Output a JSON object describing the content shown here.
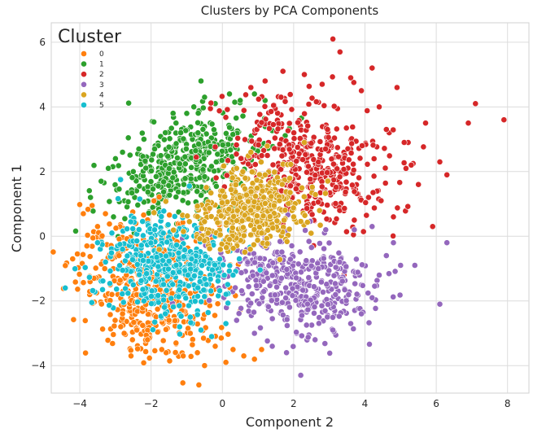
{
  "chart_data": {
    "type": "scatter",
    "title": "Clusters by PCA Components",
    "xlabel": "Component 2",
    "ylabel": "Component 1",
    "xlim": [
      -4.8,
      8.6
    ],
    "ylim": [
      -4.85,
      6.6
    ],
    "xticks": [
      -4,
      -2,
      0,
      2,
      4,
      6,
      8
    ],
    "yticks": [
      -4,
      -2,
      0,
      2,
      4,
      6
    ],
    "grid": true,
    "legend": {
      "title": "Cluster",
      "placement": "top-left"
    },
    "series": [
      {
        "name": "0",
        "color": "#ff7f0e",
        "centroid": [
          -2.1,
          -1.6
        ],
        "spread": [
          1.0,
          1.1
        ],
        "rho": -0.25,
        "points": [
          [
            -4.2,
            -0.7
          ],
          [
            -3.9,
            0.7
          ],
          [
            -3.8,
            -0.3
          ],
          [
            -3.6,
            -1.3
          ],
          [
            -3.5,
            0.3
          ],
          [
            -3.3,
            -1.0
          ],
          [
            -3.1,
            -1.8
          ],
          [
            -2.9,
            -0.6
          ],
          [
            -2.8,
            -2.4
          ],
          [
            -2.6,
            -1.4
          ],
          [
            -2.4,
            -2.9
          ],
          [
            -2.3,
            -0.5
          ],
          [
            -2.1,
            -3.2
          ],
          [
            -1.9,
            -2.0
          ],
          [
            -1.7,
            -3.5
          ],
          [
            -1.5,
            -2.6
          ],
          [
            -1.3,
            -3.3
          ],
          [
            -1.1,
            -3.7
          ],
          [
            -0.9,
            -3.0
          ],
          [
            -0.7,
            -3.6
          ],
          [
            -0.5,
            -4.0
          ],
          [
            -0.2,
            -3.4
          ],
          [
            0.1,
            -3.9
          ],
          [
            0.3,
            -3.5
          ],
          [
            0.6,
            -3.7
          ],
          [
            0.9,
            -3.8
          ],
          [
            1.1,
            -3.5
          ]
        ]
      },
      {
        "name": "1",
        "color": "#2ca02c",
        "centroid": [
          -1.0,
          2.2
        ],
        "spread": [
          1.0,
          0.8
        ],
        "rho": 0.4,
        "points": [
          [
            -3.7,
            1.2
          ],
          [
            -3.4,
            1.7
          ],
          [
            -3.2,
            2.1
          ],
          [
            -3.0,
            2.4
          ],
          [
            -2.8,
            2.6
          ],
          [
            -2.5,
            2.0
          ],
          [
            -2.2,
            3.0
          ],
          [
            -1.9,
            2.7
          ],
          [
            -1.6,
            3.2
          ],
          [
            -1.3,
            3.5
          ],
          [
            -1.0,
            3.8
          ],
          [
            -0.8,
            4.0
          ],
          [
            -0.5,
            4.3
          ],
          [
            -0.2,
            4.1
          ],
          [
            0.2,
            4.4
          ],
          [
            0.5,
            4.2
          ],
          [
            0.9,
            4.4
          ],
          [
            1.2,
            4.2
          ],
          [
            -0.6,
            4.8
          ]
        ]
      },
      {
        "name": "2",
        "color": "#d62728",
        "centroid": [
          2.4,
          2.3
        ],
        "spread": [
          1.1,
          1.0
        ],
        "rho": -0.3,
        "points": [
          [
            0.8,
            4.6
          ],
          [
            1.2,
            4.8
          ],
          [
            1.7,
            5.1
          ],
          [
            2.3,
            5.0
          ],
          [
            2.8,
            4.7
          ],
          [
            3.1,
            6.1
          ],
          [
            3.3,
            5.7
          ],
          [
            3.6,
            4.9
          ],
          [
            3.9,
            4.5
          ],
          [
            4.2,
            5.2
          ],
          [
            4.4,
            4.0
          ],
          [
            4.6,
            3.3
          ],
          [
            4.9,
            4.6
          ],
          [
            5.1,
            2.9
          ],
          [
            5.3,
            2.2
          ],
          [
            5.5,
            1.6
          ],
          [
            5.7,
            3.5
          ],
          [
            5.9,
            0.3
          ],
          [
            6.1,
            2.3
          ],
          [
            6.3,
            1.9
          ],
          [
            6.9,
            3.5
          ],
          [
            7.1,
            4.1
          ],
          [
            7.9,
            3.6
          ],
          [
            4.8,
            0.6
          ],
          [
            4.1,
            1.2
          ],
          [
            3.7,
            0.5
          ]
        ]
      },
      {
        "name": "3",
        "color": "#9467bd",
        "centroid": [
          2.1,
          -1.4
        ],
        "spread": [
          1.1,
          0.8
        ],
        "rho": -0.3,
        "points": [
          [
            -0.1,
            -1.6
          ],
          [
            0.4,
            -2.6
          ],
          [
            0.9,
            -3.0
          ],
          [
            1.4,
            -3.4
          ],
          [
            1.8,
            -3.6
          ],
          [
            2.2,
            -4.3
          ],
          [
            2.6,
            -3.2
          ],
          [
            3.1,
            -2.9
          ],
          [
            3.6,
            -2.7
          ],
          [
            3.9,
            -2.4
          ],
          [
            4.2,
            -1.9
          ],
          [
            4.4,
            -1.2
          ],
          [
            4.6,
            -0.6
          ],
          [
            4.8,
            -0.2
          ],
          [
            5.0,
            -0.9
          ],
          [
            5.4,
            -0.9
          ],
          [
            6.1,
            -2.1
          ],
          [
            6.3,
            -0.2
          ],
          [
            4.2,
            0.3
          ],
          [
            3.7,
            0.2
          ],
          [
            2.9,
            0.2
          ]
        ]
      },
      {
        "name": "4",
        "color": "#daa520",
        "centroid": [
          0.8,
          0.8
        ],
        "spread": [
          0.8,
          0.6
        ],
        "rho": 0.2,
        "points": [
          [
            -0.4,
            0.1
          ],
          [
            0.0,
            1.4
          ],
          [
            0.4,
            2.1
          ],
          [
            0.8,
            2.6
          ],
          [
            1.2,
            1.9
          ],
          [
            1.6,
            1.1
          ],
          [
            2.0,
            0.6
          ],
          [
            2.3,
            2.9
          ],
          [
            1.1,
            0.1
          ],
          [
            0.2,
            -0.1
          ]
        ]
      },
      {
        "name": "5",
        "color": "#17becf",
        "centroid": [
          -1.5,
          -0.9
        ],
        "spread": [
          0.9,
          0.75
        ],
        "rho": -0.1,
        "points": [
          [
            -3.5,
            -0.2
          ],
          [
            -3.1,
            0.1
          ],
          [
            -2.8,
            -0.4
          ],
          [
            -2.5,
            -1.5
          ],
          [
            -2.2,
            -2.0
          ],
          [
            -1.9,
            0.2
          ],
          [
            -1.6,
            -2.4
          ],
          [
            -1.2,
            -2.8
          ],
          [
            -0.9,
            -2.5
          ],
          [
            -0.6,
            -2.9
          ],
          [
            -0.3,
            -3.1
          ],
          [
            0.1,
            -2.7
          ],
          [
            0.3,
            -1.2
          ],
          [
            -0.2,
            0.0
          ]
        ]
      }
    ]
  }
}
